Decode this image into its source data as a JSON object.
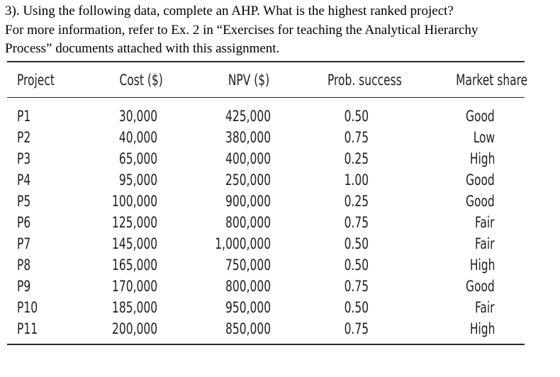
{
  "question": {
    "line1": "3). Using the following data, complete an AHP.  What is the highest ranked project?",
    "line2": "For more information, refer to Ex. 2 in “Exercises for teaching the Analytical Hierarchy",
    "line3": "Process” documents attached with this assignment."
  },
  "table": {
    "headers": [
      "Project",
      "Cost ($)",
      "NPV ($)",
      "Prob. success",
      "Market share"
    ],
    "rows": [
      [
        "P1",
        "30,000",
        "425,000",
        "0.50",
        "Good"
      ],
      [
        "P2",
        "40,000",
        "380,000",
        "0.75",
        "Low"
      ],
      [
        "P3",
        "65,000",
        "400,000",
        "0.25",
        "High"
      ],
      [
        "P4",
        "95,000",
        "250,000",
        "1.00",
        "Good"
      ],
      [
        "P5",
        "100,000",
        "900,000",
        "0.25",
        "Good"
      ],
      [
        "P6",
        "125,000",
        "800,000",
        "0.75",
        "Fair"
      ],
      [
        "P7",
        "145,000",
        "1,000,000",
        "0.50",
        "Fair"
      ],
      [
        "P8",
        "165,000",
        "750,000",
        "0.50",
        "High"
      ],
      [
        "P9",
        "170,000",
        "800,000",
        "0.75",
        "Good"
      ],
      [
        "P10",
        "185,000",
        "950,000",
        "0.50",
        "Fair"
      ],
      [
        "P11",
        "200,000",
        "850,000",
        "0.75",
        "High"
      ]
    ]
  }
}
